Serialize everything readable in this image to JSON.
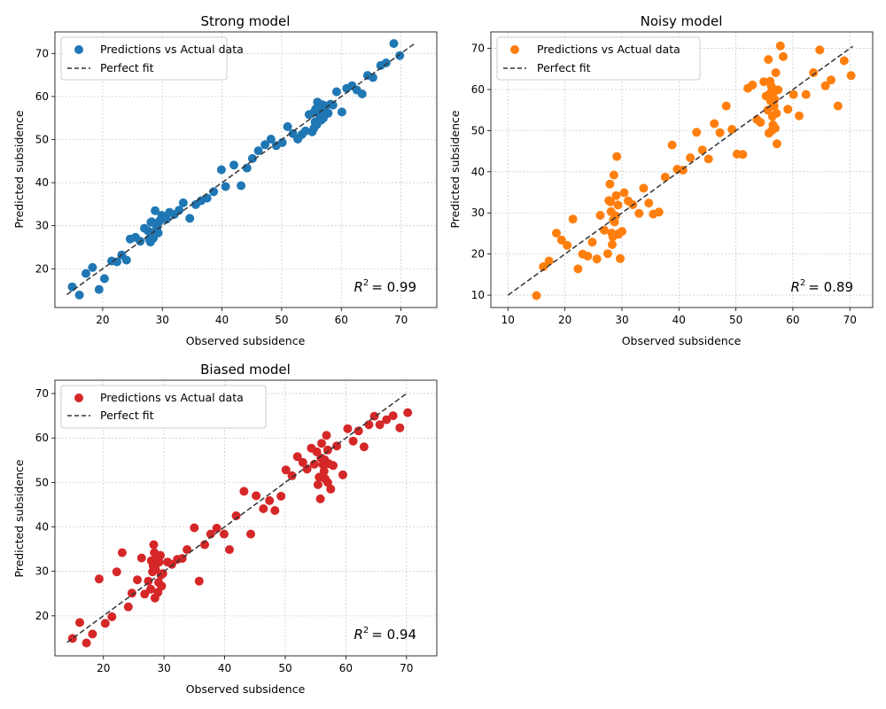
{
  "chart_data": [
    {
      "type": "scatter",
      "title": "Strong model",
      "xlabel": "Observed subsidence",
      "ylabel": "Predicted subsidence",
      "xlim": [
        12,
        76
      ],
      "ylim": [
        11,
        75
      ],
      "xticks": [
        20,
        30,
        40,
        50,
        60,
        70
      ],
      "yticks": [
        20,
        30,
        40,
        50,
        60,
        70
      ],
      "fit_line": [
        14,
        72.3
      ],
      "grid": true,
      "legend_position": "top-left",
      "legend": {
        "points_label": "Predictions vs Actual data",
        "line_label": "Perfect fit"
      },
      "color": "#1f77b4",
      "r2_text": "= 0.99",
      "series": [
        {
          "name": "Predictions vs Actual data",
          "x": [
            14.9,
            16.1,
            17.2,
            18.3,
            19.4,
            20.3,
            21.5,
            22.4,
            23.2,
            24.0,
            24.6,
            25.5,
            26.3,
            27.0,
            27.6,
            28.0,
            28.2,
            28.5,
            28.8,
            29.0,
            29.3,
            29.6,
            29.9,
            28.1,
            27.8,
            28.6,
            29.1,
            29.5,
            30.1,
            30.7,
            31.2,
            32.0,
            32.8,
            33.5,
            34.6,
            35.6,
            36.5,
            37.5,
            38.6,
            39.9,
            40.6,
            42.0,
            43.2,
            44.2,
            45.1,
            46.1,
            47.2,
            48.2,
            49.1,
            50.1,
            51.0,
            51.9,
            52.7,
            53.4,
            54.0,
            54.6,
            55.1,
            55.4,
            55.5,
            55.6,
            55.7,
            55.9,
            56.0,
            56.2,
            56.4,
            56.5,
            56.6,
            56.8,
            57.0,
            57.2,
            57.4,
            57.8,
            58.2,
            58.6,
            59.2,
            60.1,
            60.9,
            61.8,
            62.6,
            63.5,
            64.4,
            65.3,
            66.6,
            67.5,
            68.8,
            69.8
          ],
          "y": [
            15.8,
            13.9,
            18.9,
            20.3,
            15.2,
            17.7,
            21.8,
            21.6,
            23.2,
            22.0,
            26.9,
            27.3,
            26.4,
            29.4,
            28.8,
            26.2,
            30.9,
            27.1,
            33.5,
            30.1,
            28.3,
            31.2,
            32.4,
            30.8,
            26.9,
            28.5,
            29.4,
            31.0,
            32.2,
            31.5,
            33.1,
            32.6,
            33.6,
            35.3,
            31.7,
            34.9,
            35.8,
            36.4,
            37.9,
            43.0,
            39.1,
            44.1,
            39.3,
            43.4,
            45.6,
            47.4,
            48.8,
            50.1,
            48.6,
            49.3,
            53.0,
            51.4,
            50.1,
            51.2,
            52.0,
            55.8,
            51.8,
            52.6,
            56.5,
            54.1,
            57.1,
            53.5,
            58.7,
            56.3,
            55.2,
            57.6,
            54.5,
            58.1,
            55.0,
            56.9,
            57.8,
            56.1,
            58.2,
            58.0,
            61.1,
            56.4,
            61.9,
            62.5,
            61.5,
            60.6,
            64.9,
            64.4,
            67.2,
            67.8,
            72.3,
            69.5
          ]
        }
      ]
    },
    {
      "type": "scatter",
      "title": "Noisy model",
      "xlabel": "Observed subsidence",
      "ylabel": "Predicted subsidence",
      "xlim": [
        7,
        74
      ],
      "ylim": [
        7,
        74
      ],
      "xticks": [
        10,
        20,
        30,
        40,
        50,
        60,
        70
      ],
      "yticks": [
        10,
        20,
        30,
        40,
        50,
        60,
        70
      ],
      "fit_line": [
        10,
        70.5
      ],
      "grid": true,
      "legend_position": "top-left",
      "legend": {
        "points_label": "Predictions vs Actual data",
        "line_label": "Perfect fit"
      },
      "color": "#ff7f0e",
      "r2_text": "= 0.89",
      "series": [
        {
          "name": "Predictions vs Actual data",
          "x": [
            15.0,
            16.2,
            17.2,
            18.5,
            19.4,
            20.4,
            21.4,
            22.3,
            23.1,
            24.0,
            24.8,
            25.6,
            26.2,
            26.9,
            27.5,
            27.9,
            28.0,
            28.2,
            28.3,
            28.4,
            28.6,
            28.7,
            28.9,
            29.1,
            29.3,
            29.5,
            29.7,
            30.0,
            28.1,
            27.7,
            28.5,
            29.0,
            29.4,
            30.4,
            31.1,
            31.9,
            33.0,
            33.8,
            34.7,
            35.5,
            36.5,
            37.6,
            38.8,
            39.7,
            40.7,
            42.0,
            43.1,
            44.1,
            45.2,
            46.2,
            47.2,
            48.3,
            49.3,
            50.2,
            51.2,
            52.1,
            52.9,
            53.7,
            54.3,
            54.9,
            55.3,
            55.6,
            55.8,
            56.0,
            56.1,
            56.2,
            56.3,
            56.4,
            56.5,
            56.6,
            56.7,
            56.8,
            56.9,
            57.0,
            57.2,
            57.4,
            57.8,
            58.3,
            59.1,
            60.1,
            61.1,
            62.3,
            63.6,
            64.7,
            65.7,
            66.7,
            67.9,
            69.0,
            70.2,
            55.7,
            57.1,
            56.0
          ],
          "y": [
            9.9,
            16.9,
            18.3,
            25.1,
            23.4,
            22.1,
            28.5,
            16.4,
            20.0,
            19.5,
            22.9,
            18.8,
            29.4,
            25.8,
            20.1,
            37.0,
            32.7,
            25.1,
            22.3,
            24.2,
            39.2,
            27.8,
            29.3,
            43.7,
            31.9,
            25.0,
            18.9,
            25.5,
            30.3,
            33.0,
            28.3,
            34.2,
            24.8,
            34.9,
            32.9,
            32.0,
            29.9,
            36.0,
            32.4,
            29.7,
            30.2,
            38.7,
            46.5,
            40.6,
            40.4,
            43.4,
            49.6,
            45.3,
            43.1,
            51.7,
            49.5,
            56.0,
            50.3,
            44.3,
            44.2,
            60.3,
            61.1,
            52.7,
            52.0,
            61.9,
            58.4,
            55.0,
            49.4,
            62.0,
            57.2,
            60.8,
            50.0,
            53.5,
            51.4,
            59.3,
            56.0,
            57.6,
            50.6,
            64.1,
            46.8,
            59.9,
            70.6,
            68.0,
            55.2,
            58.8,
            53.6,
            58.8,
            64.1,
            69.6,
            60.9,
            62.3,
            56.0,
            67.0,
            63.4,
            67.3,
            54.2,
            59.0
          ]
        }
      ]
    },
    {
      "type": "scatter",
      "title": "Biased model",
      "xlabel": "Observed subsidence",
      "ylabel": "Predicted subsidence",
      "xlim": [
        12,
        75
      ],
      "ylim": [
        11,
        73
      ],
      "xticks": [
        20,
        30,
        40,
        50,
        60,
        70
      ],
      "yticks": [
        20,
        30,
        40,
        50,
        60,
        70
      ],
      "fit_line": [
        14,
        70.2
      ],
      "grid": true,
      "legend_position": "top-left",
      "legend": {
        "points_label": "Predictions vs Actual data",
        "line_label": "Perfect fit"
      },
      "color": "#d62728",
      "r2_text": "= 0.94",
      "series": [
        {
          "name": "Predictions vs Actual data",
          "x": [
            14.9,
            16.1,
            17.2,
            18.2,
            19.3,
            20.3,
            21.4,
            22.2,
            23.1,
            24.1,
            24.7,
            25.6,
            26.3,
            26.8,
            27.4,
            27.8,
            28.1,
            28.3,
            28.4,
            28.5,
            28.6,
            28.8,
            29.0,
            29.2,
            29.4,
            29.6,
            29.8,
            28.2,
            27.9,
            28.7,
            29.1,
            29.5,
            30.6,
            31.3,
            32.2,
            33.0,
            33.8,
            35.0,
            35.8,
            36.7,
            37.7,
            38.7,
            39.9,
            40.8,
            41.9,
            43.2,
            44.3,
            45.2,
            46.4,
            47.4,
            48.3,
            49.3,
            50.1,
            51.1,
            52.0,
            52.9,
            53.6,
            54.3,
            54.8,
            55.2,
            55.4,
            55.6,
            55.8,
            56.0,
            56.2,
            56.4,
            56.5,
            56.6,
            56.8,
            57.0,
            57.2,
            57.5,
            57.9,
            58.5,
            59.5,
            60.3,
            61.2,
            62.1,
            63.0,
            63.8,
            64.7,
            65.6,
            66.7,
            67.8,
            68.9,
            70.2,
            55.9,
            57.0
          ],
          "y": [
            14.9,
            18.5,
            13.9,
            15.9,
            28.3,
            18.3,
            19.8,
            29.9,
            34.2,
            22.0,
            25.1,
            28.1,
            33.0,
            24.9,
            27.8,
            26.0,
            29.9,
            36.0,
            34.2,
            24.0,
            30.5,
            33.2,
            25.3,
            32.1,
            33.6,
            26.7,
            29.5,
            31.3,
            32.4,
            31.8,
            27.5,
            29.2,
            32.1,
            31.6,
            32.7,
            32.9,
            34.9,
            39.8,
            27.8,
            36.0,
            38.4,
            39.7,
            38.4,
            34.9,
            42.5,
            48.0,
            38.4,
            47.0,
            44.1,
            45.9,
            43.7,
            46.9,
            52.8,
            51.5,
            55.8,
            54.5,
            53.0,
            57.7,
            54.1,
            56.9,
            49.5,
            51.2,
            46.3,
            58.8,
            54.0,
            52.5,
            55.1,
            50.8,
            60.6,
            57.3,
            54.2,
            48.5,
            53.8,
            58.2,
            51.7,
            62.1,
            59.3,
            61.6,
            58.0,
            63.0,
            64.9,
            63.0,
            64.1,
            65.0,
            62.3,
            65.7,
            55.5,
            50.0
          ]
        }
      ]
    }
  ]
}
